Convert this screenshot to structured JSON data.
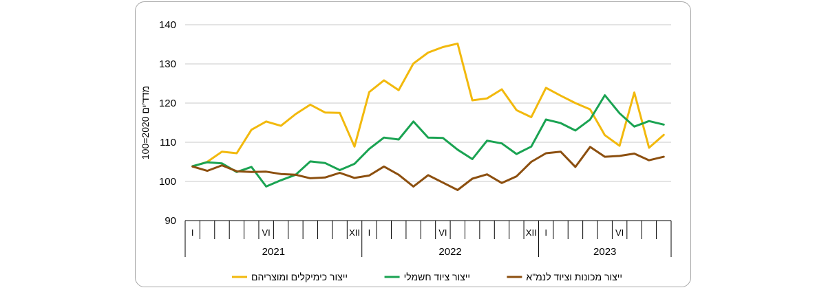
{
  "chart_data": {
    "type": "line",
    "ylabel": "מדד′ים 2020=100",
    "ylim": [
      90,
      140
    ],
    "yticks": [
      90,
      100,
      110,
      120,
      130,
      140
    ],
    "grid": true,
    "legend_position": "bottom",
    "x": [
      "2021-01",
      "2021-02",
      "2021-03",
      "2021-04",
      "2021-05",
      "2021-06",
      "2021-07",
      "2021-08",
      "2021-09",
      "2021-10",
      "2021-11",
      "2021-12",
      "2022-01",
      "2022-02",
      "2022-03",
      "2022-04",
      "2022-05",
      "2022-06",
      "2022-07",
      "2022-08",
      "2022-09",
      "2022-10",
      "2022-11",
      "2022-12",
      "2023-01",
      "2023-02",
      "2023-03",
      "2023-04",
      "2023-05",
      "2023-06",
      "2023-07",
      "2023-08",
      "2023-09"
    ],
    "month_labels": [
      {
        "index": 0,
        "text": "I"
      },
      {
        "index": 5,
        "text": "VI"
      },
      {
        "index": 11,
        "text": "XII"
      },
      {
        "index": 12,
        "text": "I"
      },
      {
        "index": 17,
        "text": "VI"
      },
      {
        "index": 23,
        "text": "XII"
      },
      {
        "index": 24,
        "text": "I"
      },
      {
        "index": 29,
        "text": "VI"
      }
    ],
    "years": [
      {
        "label": "2021",
        "start": 0,
        "end": 11
      },
      {
        "label": "2022",
        "start": 12,
        "end": 23
      },
      {
        "label": "2023",
        "start": 24,
        "end": 32
      }
    ],
    "series": [
      {
        "name": "ייצור כימיקלים ומוצריהם",
        "color": "#f2b90d",
        "values": [
          103.8,
          105.0,
          107.6,
          107.2,
          113.2,
          115.3,
          114.2,
          117.2,
          119.6,
          117.6,
          117.5,
          108.9,
          122.8,
          125.8,
          123.3,
          130.1,
          132.9,
          134.3,
          135.2,
          120.7,
          121.2,
          123.5,
          118.2,
          116.4,
          123.9,
          121.9,
          120.0,
          118.4,
          111.8,
          109.1,
          122.7,
          108.6,
          111.9
        ]
      },
      {
        "name": "ייצור ציוד חשמלי",
        "color": "#1aa352",
        "values": [
          103.9,
          104.9,
          104.6,
          102.4,
          103.7,
          98.7,
          100.3,
          101.7,
          105.1,
          104.7,
          102.9,
          104.5,
          108.3,
          111.2,
          110.7,
          115.3,
          111.2,
          111.1,
          108.1,
          105.7,
          110.4,
          109.7,
          107.0,
          108.9,
          115.8,
          114.9,
          113.0,
          115.8,
          122.0,
          117.4,
          114.0,
          115.4,
          114.5
        ]
      },
      {
        "name": "ייצור מכונות וציוד לנמ\"א",
        "color": "#8c4f0f",
        "values": [
          103.8,
          102.7,
          104.1,
          102.6,
          102.4,
          102.5,
          101.9,
          101.7,
          100.8,
          101.0,
          102.2,
          100.9,
          101.5,
          103.8,
          101.7,
          98.7,
          101.6,
          99.7,
          97.8,
          100.7,
          101.8,
          99.6,
          101.3,
          105.0,
          107.2,
          107.6,
          103.7,
          108.8,
          106.3,
          106.5,
          107.1,
          105.4,
          106.3
        ]
      }
    ]
  }
}
